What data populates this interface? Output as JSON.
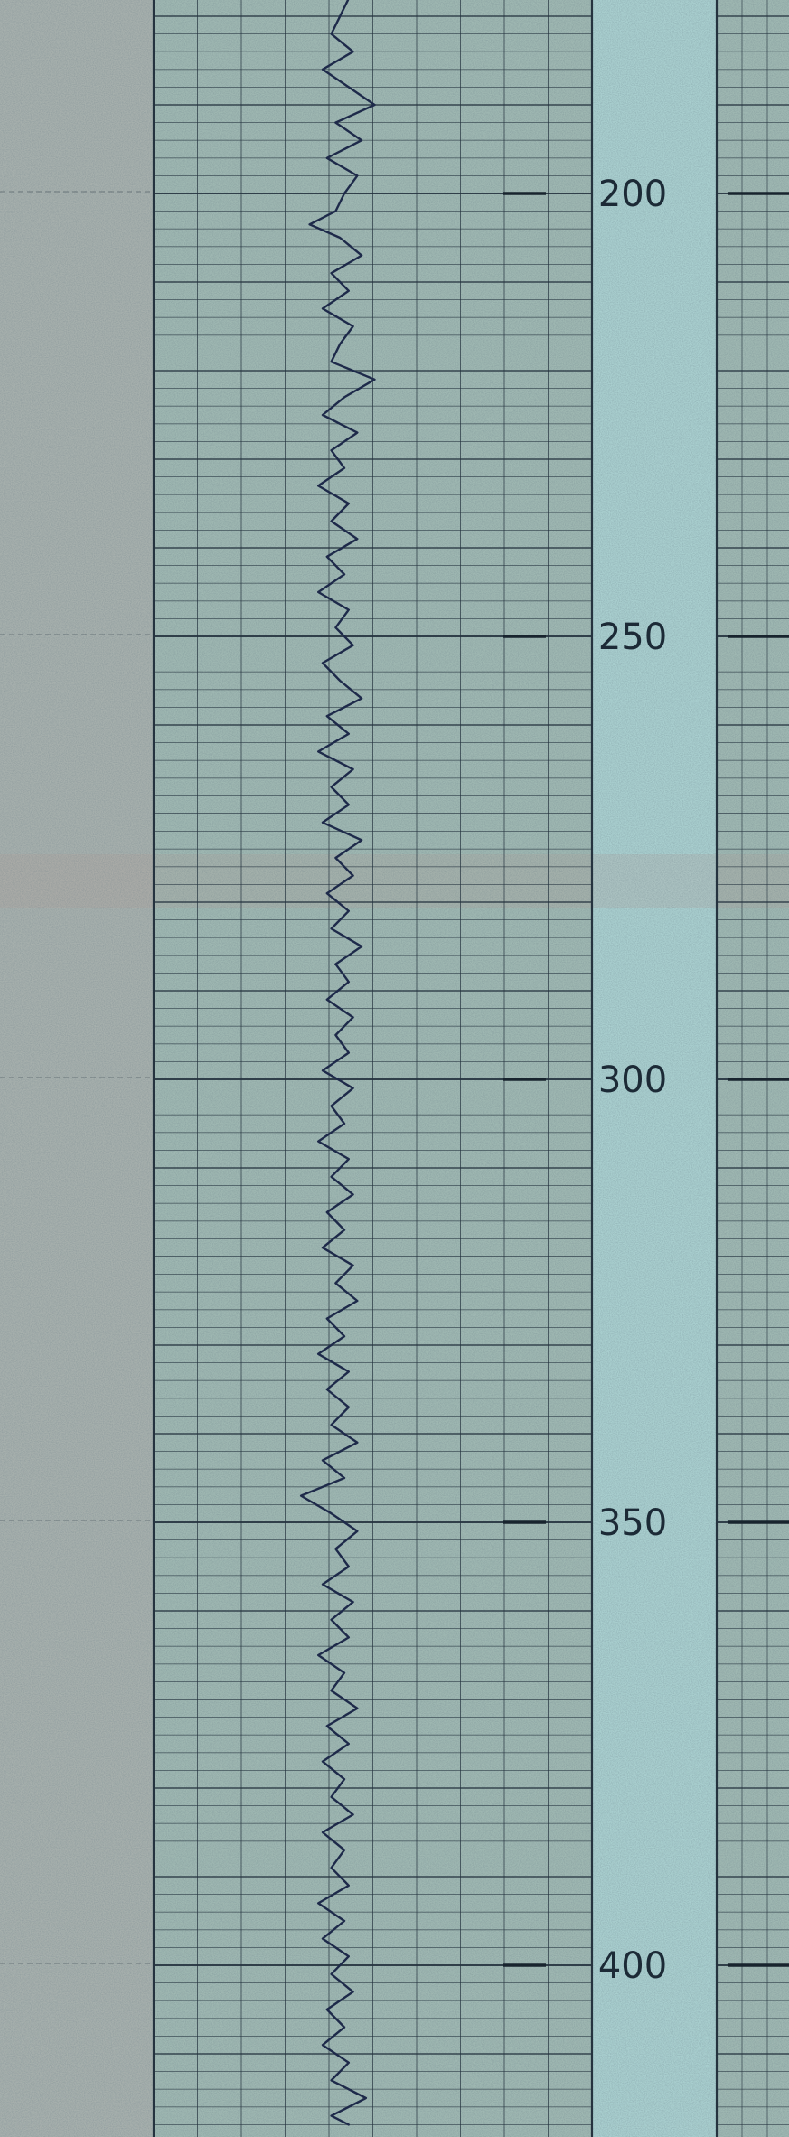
{
  "colors": {
    "paper": "#9fb8b2",
    "paper_left": "#a7b0ad",
    "paper_middle": "#a9cfcf",
    "grid": "#25333f",
    "trace": "#1e2a4a",
    "text": "#1c2a36"
  },
  "chart_data": {
    "type": "line",
    "title": "",
    "xlabel": "",
    "ylabel": "",
    "orientation": "vertical-depth",
    "depth_ticks": [
      200,
      250,
      300,
      350,
      400
    ],
    "depth_range": [
      178,
      418
    ],
    "grid": true,
    "series": [
      {
        "points": [
          [
            178.0,
            0.44
          ],
          [
            180.0,
            0.42
          ],
          [
            182.0,
            0.4
          ],
          [
            184.0,
            0.45
          ],
          [
            186.0,
            0.38
          ],
          [
            188.0,
            0.44
          ],
          [
            190.0,
            0.5
          ],
          [
            192.0,
            0.41
          ],
          [
            194.0,
            0.47
          ],
          [
            196.0,
            0.39
          ],
          [
            198.0,
            0.46
          ],
          [
            200.0,
            0.43
          ],
          [
            202.0,
            0.41
          ],
          [
            203.5,
            0.35
          ],
          [
            205.0,
            0.42
          ],
          [
            207.0,
            0.47
          ],
          [
            209.0,
            0.4
          ],
          [
            211.0,
            0.44
          ],
          [
            213.0,
            0.38
          ],
          [
            215.0,
            0.45
          ],
          [
            217.0,
            0.42
          ],
          [
            219.0,
            0.4
          ],
          [
            221.0,
            0.5
          ],
          [
            223.0,
            0.43
          ],
          [
            225.0,
            0.38
          ],
          [
            227.0,
            0.46
          ],
          [
            229.0,
            0.4
          ],
          [
            231.0,
            0.43
          ],
          [
            233.0,
            0.37
          ],
          [
            235.0,
            0.44
          ],
          [
            237.0,
            0.4
          ],
          [
            239.0,
            0.46
          ],
          [
            241.0,
            0.39
          ],
          [
            243.0,
            0.43
          ],
          [
            245.0,
            0.37
          ],
          [
            247.0,
            0.44
          ],
          [
            249.0,
            0.41
          ],
          [
            251.0,
            0.45
          ],
          [
            253.0,
            0.38
          ],
          [
            255.0,
            0.42
          ],
          [
            257.0,
            0.47
          ],
          [
            259.0,
            0.39
          ],
          [
            261.0,
            0.44
          ],
          [
            263.0,
            0.37
          ],
          [
            265.0,
            0.45
          ],
          [
            267.0,
            0.4
          ],
          [
            269.0,
            0.44
          ],
          [
            271.0,
            0.38
          ],
          [
            273.0,
            0.47
          ],
          [
            275.0,
            0.41
          ],
          [
            277.0,
            0.45
          ],
          [
            279.0,
            0.39
          ],
          [
            281.0,
            0.44
          ],
          [
            283.0,
            0.4
          ],
          [
            285.0,
            0.47
          ],
          [
            287.0,
            0.41
          ],
          [
            289.0,
            0.44
          ],
          [
            291.0,
            0.39
          ],
          [
            293.0,
            0.45
          ],
          [
            295.0,
            0.41
          ],
          [
            297.0,
            0.44
          ],
          [
            299.0,
            0.38
          ],
          [
            301.0,
            0.45
          ],
          [
            303.0,
            0.4
          ],
          [
            305.0,
            0.43
          ],
          [
            307.0,
            0.37
          ],
          [
            309.0,
            0.44
          ],
          [
            311.0,
            0.4
          ],
          [
            313.0,
            0.45
          ],
          [
            315.0,
            0.39
          ],
          [
            317.0,
            0.43
          ],
          [
            319.0,
            0.38
          ],
          [
            321.0,
            0.45
          ],
          [
            323.0,
            0.41
          ],
          [
            325.0,
            0.46
          ],
          [
            327.0,
            0.39
          ],
          [
            329.0,
            0.43
          ],
          [
            331.0,
            0.37
          ],
          [
            333.0,
            0.44
          ],
          [
            335.0,
            0.39
          ],
          [
            337.0,
            0.44
          ],
          [
            339.0,
            0.4
          ],
          [
            341.0,
            0.46
          ],
          [
            343.0,
            0.38
          ],
          [
            345.0,
            0.43
          ],
          [
            347.0,
            0.33
          ],
          [
            349.0,
            0.4
          ],
          [
            351.0,
            0.46
          ],
          [
            353.0,
            0.41
          ],
          [
            355.0,
            0.44
          ],
          [
            357.0,
            0.38
          ],
          [
            359.0,
            0.45
          ],
          [
            361.0,
            0.4
          ],
          [
            363.0,
            0.44
          ],
          [
            365.0,
            0.37
          ],
          [
            367.0,
            0.43
          ],
          [
            369.0,
            0.4
          ],
          [
            371.0,
            0.46
          ],
          [
            373.0,
            0.39
          ],
          [
            375.0,
            0.44
          ],
          [
            377.0,
            0.38
          ],
          [
            379.0,
            0.43
          ],
          [
            381.0,
            0.4
          ],
          [
            383.0,
            0.45
          ],
          [
            385.0,
            0.38
          ],
          [
            387.0,
            0.43
          ],
          [
            389.0,
            0.4
          ],
          [
            391.0,
            0.44
          ],
          [
            393.0,
            0.37
          ],
          [
            395.0,
            0.43
          ],
          [
            397.0,
            0.38
          ],
          [
            399.0,
            0.44
          ],
          [
            401.0,
            0.4
          ],
          [
            403.0,
            0.45
          ],
          [
            405.0,
            0.39
          ],
          [
            407.0,
            0.43
          ],
          [
            409.0,
            0.38
          ],
          [
            411.0,
            0.44
          ],
          [
            413.0,
            0.4
          ],
          [
            415.0,
            0.48
          ],
          [
            417.0,
            0.4
          ],
          [
            418.0,
            0.44
          ]
        ]
      }
    ]
  }
}
